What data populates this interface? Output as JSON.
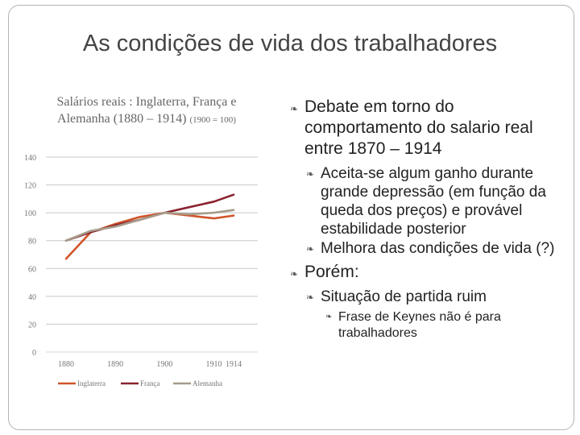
{
  "slide": {
    "title": "As condições de vida dos trabalhadores"
  },
  "chart_title": {
    "main": "Salários reais : Inglaterra, França e Alemanha (1880 – 1914)",
    "sub": "(1900 = 100)"
  },
  "chart_data": {
    "type": "line",
    "x": [
      1880,
      1885,
      1890,
      1895,
      1900,
      1905,
      1910,
      1914
    ],
    "xticks": [
      "1880",
      "1890",
      "1900",
      "1910",
      "1914"
    ],
    "yticks": [
      "0",
      "20",
      "40",
      "60",
      "80",
      "100",
      "120",
      "140"
    ],
    "ylim": [
      0,
      140
    ],
    "grid": true,
    "legend": "bottom",
    "series": [
      {
        "name": "Inglaterra",
        "color": "#d0542a",
        "values": [
          67,
          86,
          92,
          97,
          100,
          98,
          96,
          98
        ]
      },
      {
        "name": "França",
        "color": "#8b2230",
        "values": [
          80,
          86,
          91,
          95,
          100,
          104,
          108,
          113
        ]
      },
      {
        "name": "Alemanha",
        "color": "#a69c8a",
        "values": [
          80,
          87,
          90,
          95,
          100,
          99,
          100,
          102
        ]
      }
    ]
  },
  "bullets": {
    "b1": "Debate em torno do comportamento do salario real entre 1870 – 1914",
    "b1_1": "Aceita-se algum ganho durante grande depressão (em função da queda dos preços) e provável estabilidade posterior",
    "b1_2": "Melhora das condições de vida (?)",
    "b2": "Porém:",
    "b2_1": "Situação de partida ruim",
    "b2_1_1": "Frase de Keynes não é para trabalhadores"
  }
}
